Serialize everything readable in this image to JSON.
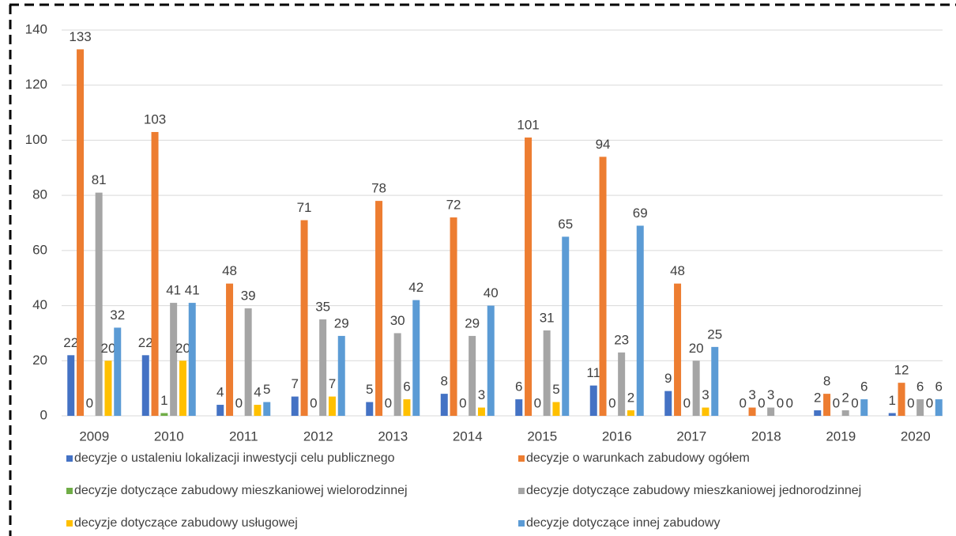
{
  "chart_data": {
    "type": "bar",
    "categories": [
      "2009",
      "2010",
      "2011",
      "2012",
      "2013",
      "2014",
      "2015",
      "2016",
      "2017",
      "2018",
      "2019",
      "2020"
    ],
    "series": [
      {
        "name": "decyzje o ustaleniu lokalizacji inwestycji celu publicznego",
        "color": "#4472c4",
        "values": [
          22,
          22,
          4,
          7,
          5,
          8,
          6,
          11,
          9,
          0,
          2,
          1
        ]
      },
      {
        "name": "decyzje o warunkach zabudowy ogółem",
        "color": "#ed7d31",
        "values": [
          133,
          103,
          48,
          71,
          78,
          72,
          101,
          94,
          48,
          3,
          8,
          12
        ]
      },
      {
        "name": "decyzje dotyczące zabudowy mieszkaniowej wielorodzinnej",
        "color": "#70ad47",
        "values": [
          0,
          1,
          0,
          0,
          0,
          0,
          0,
          0,
          0,
          0,
          0,
          0
        ]
      },
      {
        "name": "decyzje dotyczące zabudowy mieszkaniowej jednorodzinnej",
        "color": "#a5a5a5",
        "values": [
          81,
          41,
          39,
          35,
          30,
          29,
          31,
          23,
          20,
          3,
          2,
          6
        ]
      },
      {
        "name": "decyzje dotyczące zabudowy usługowej",
        "color": "#ffc000",
        "values": [
          20,
          20,
          4,
          7,
          6,
          3,
          5,
          2,
          3,
          0,
          0,
          0
        ]
      },
      {
        "name": "decyzje dotyczące innej zabudowy",
        "color": "#5b9bd5",
        "values": [
          32,
          41,
          5,
          29,
          42,
          40,
          65,
          69,
          25,
          0,
          6,
          6
        ]
      }
    ],
    "ylim": [
      0,
      140
    ],
    "yticks": [
      0,
      20,
      40,
      60,
      80,
      100,
      120,
      140
    ],
    "grid": true,
    "legend": "bottom",
    "data_labels": true
  }
}
